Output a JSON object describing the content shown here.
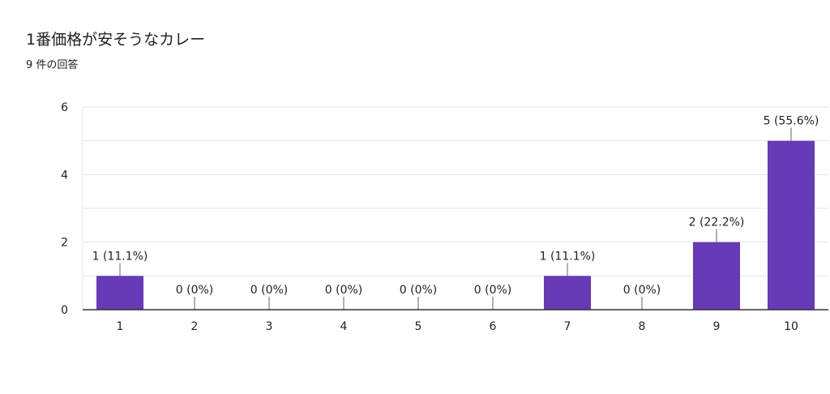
{
  "header": {
    "title": "1番価格が安そうなカレー",
    "subtitle": "9 件の回答"
  },
  "colors": {
    "bar": "#673ab7",
    "gridline": "#e6e6e6",
    "baseline": "#333333",
    "tick_text": "#222222"
  },
  "chart_data": {
    "type": "bar",
    "title": "1番価格が安そうなカレー",
    "subtitle": "9 件の回答",
    "xlabel": "",
    "ylabel": "",
    "categories": [
      "1",
      "2",
      "3",
      "4",
      "5",
      "6",
      "7",
      "8",
      "9",
      "10"
    ],
    "values": [
      1,
      0,
      0,
      0,
      0,
      0,
      1,
      0,
      2,
      5
    ],
    "data_labels": [
      "1 (11.1%)",
      "0 (0%)",
      "0 (0%)",
      "0 (0%)",
      "0 (0%)",
      "0 (0%)",
      "1 (11.1%)",
      "0 (0%)",
      "2 (22.2%)",
      "5 (55.6%)"
    ],
    "ylim": [
      0,
      6
    ],
    "y_ticks": [
      0,
      2,
      4,
      6
    ],
    "grid": true,
    "legend": "none"
  }
}
